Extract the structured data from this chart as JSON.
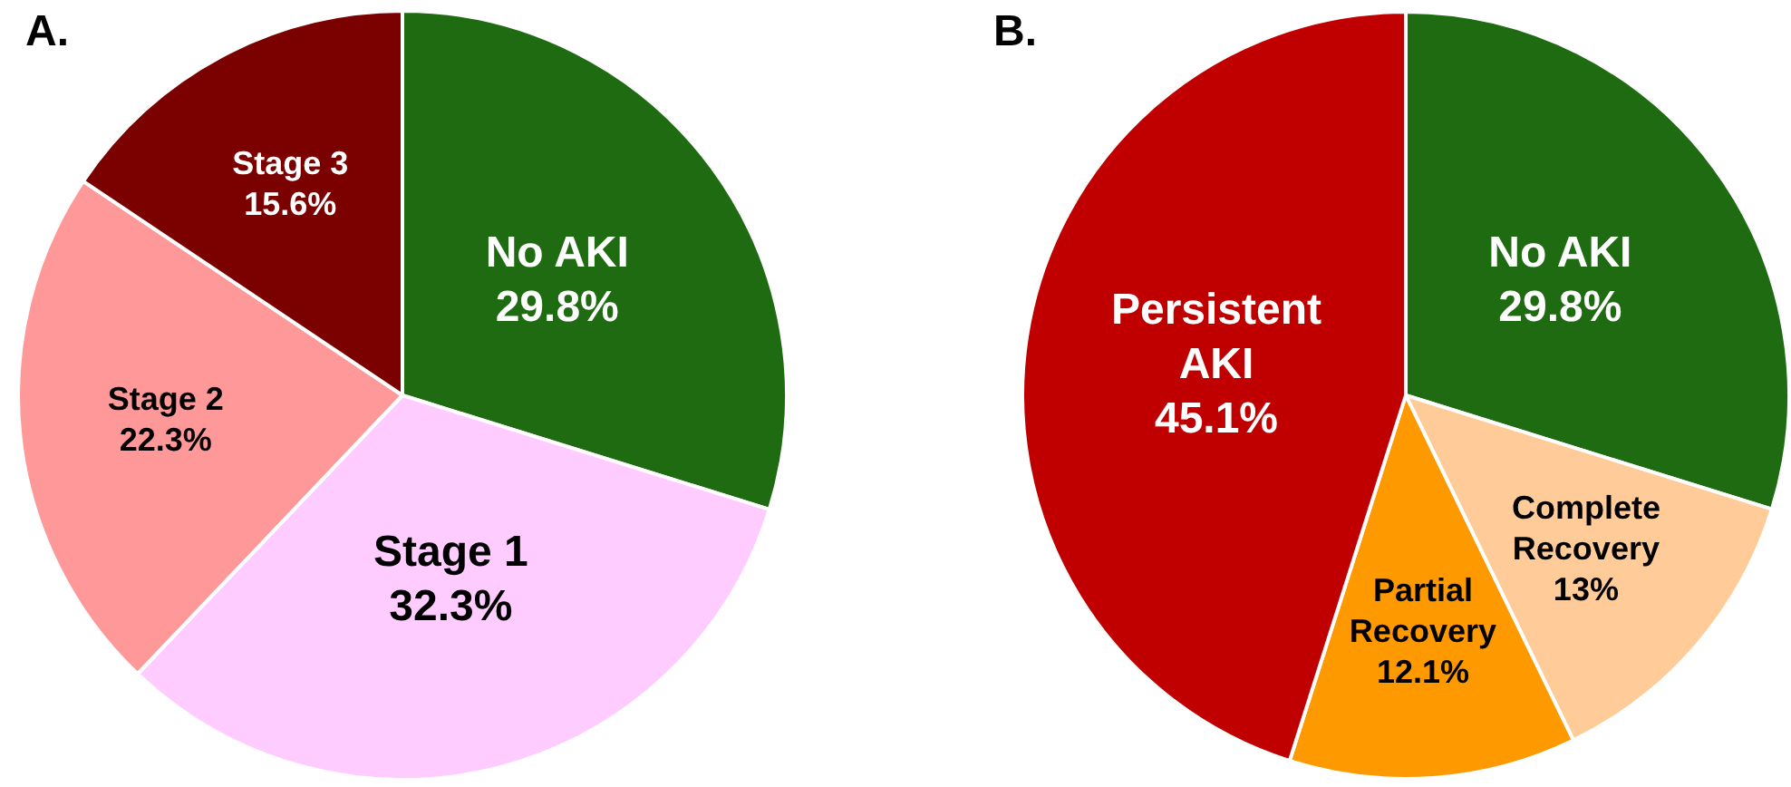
{
  "chart_data": [
    {
      "type": "pie",
      "title": "A.",
      "categories": [
        "No AKI",
        "Stage 1",
        "Stage 2",
        "Stage 3"
      ],
      "values": [
        29.8,
        32.3,
        22.3,
        15.6
      ],
      "value_labels": [
        "29.8%",
        "32.3%",
        "22.3%",
        "15.6%"
      ],
      "colors": [
        "#1e6b12",
        "#ffccff",
        "#ff9999",
        "#7b0000"
      ]
    },
    {
      "type": "pie",
      "title": "B.",
      "categories": [
        "No AKI",
        "Complete Recovery",
        "Partial Recovery",
        "Persistent AKI"
      ],
      "values": [
        29.8,
        13,
        12.1,
        45.1
      ],
      "value_labels": [
        "29.8%",
        "13%",
        "12.1%",
        "45.1%"
      ],
      "colors": [
        "#1e6b12",
        "#ffcc99",
        "#ff9900",
        "#c00000"
      ]
    }
  ]
}
